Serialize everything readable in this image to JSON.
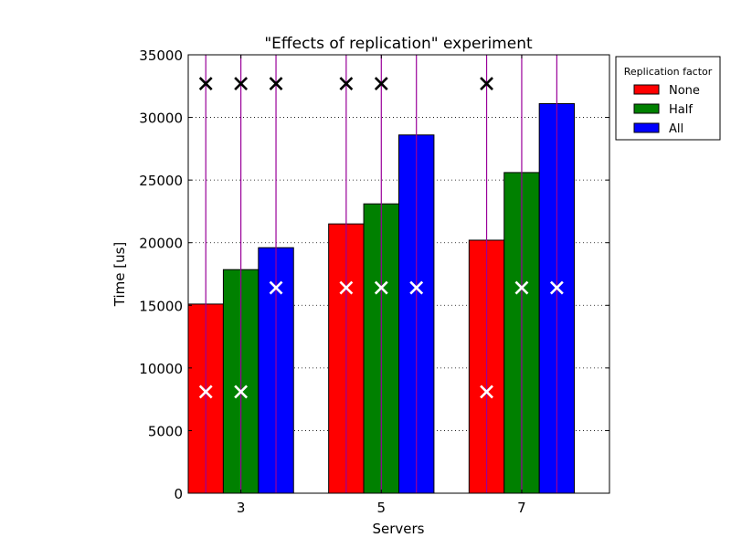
{
  "chart_data": {
    "type": "bar",
    "title": "\"Effects of replication\" experiment",
    "xlabel": "Servers",
    "ylabel": "Time [us]",
    "categories": [
      "3",
      "5",
      "7"
    ],
    "ylim": [
      0,
      35000
    ],
    "yticks": [
      0,
      5000,
      10000,
      15000,
      20000,
      25000,
      30000,
      35000
    ],
    "grid": "y-dotted",
    "legend": {
      "title": "Replication factor",
      "placement": "outside-top-right"
    },
    "series": [
      {
        "name": "None",
        "color": "#ff0000",
        "values": [
          15100,
          21500,
          20200
        ]
      },
      {
        "name": "Half",
        "color": "#008000",
        "values": [
          17850,
          23100,
          25600
        ]
      },
      {
        "name": "All",
        "color": "#0000ff",
        "values": [
          19600,
          28600,
          31100
        ]
      }
    ],
    "annotations": {
      "line_color": "#990099",
      "top_markers": {
        "symbol": "x",
        "color": "#000000",
        "y": 32700,
        "present": [
          [
            true,
            true,
            true
          ],
          [
            true,
            true,
            false
          ],
          [
            true,
            false,
            false
          ]
        ]
      },
      "in_bar_markers": {
        "symbol": "x",
        "color": "#ffffff",
        "y": [
          [
            8100,
            8100,
            16400
          ],
          [
            16400,
            16400,
            16400
          ],
          [
            8100,
            16400,
            16400
          ]
        ]
      }
    }
  }
}
